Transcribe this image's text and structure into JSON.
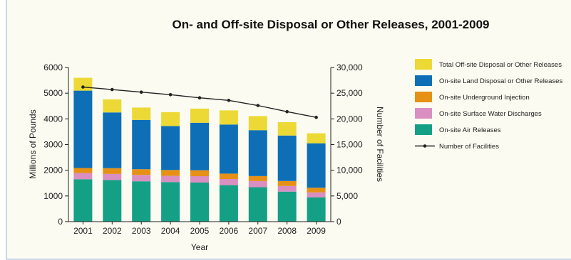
{
  "chart_data": {
    "type": "bar",
    "stacked": true,
    "title": "On- and Off-site Disposal or Other Releases, 2001-2009",
    "xlabel": "Year",
    "ylabel": "Millions of Pounds",
    "y2label": "Number of Facilities",
    "categories": [
      "2001",
      "2002",
      "2003",
      "2004",
      "2005",
      "2006",
      "2007",
      "2008",
      "2009"
    ],
    "ylim": [
      0,
      6000
    ],
    "yticks": [
      "0",
      "1000",
      "2000",
      "3000",
      "4000",
      "5000",
      "6000"
    ],
    "y2lim": [
      0,
      30000
    ],
    "y2ticks": [
      "0",
      "5,000",
      "10,000",
      "15,000",
      "20,000",
      "25,000",
      "30,000"
    ],
    "series": [
      {
        "name": "On-site Air Releases",
        "color": "#14a085",
        "values": [
          1650,
          1620,
          1570,
          1540,
          1520,
          1420,
          1340,
          1170,
          940
        ]
      },
      {
        "name": "On-site Surface Water Discharges",
        "color": "#d98fc1",
        "values": [
          240,
          240,
          250,
          240,
          250,
          240,
          240,
          220,
          200
        ]
      },
      {
        "name": "On-site Underground Injection",
        "color": "#e69116",
        "values": [
          200,
          220,
          220,
          230,
          230,
          210,
          190,
          190,
          180
        ]
      },
      {
        "name": "On-site Land Disposal or Other Releases",
        "color": "#0e6fb7",
        "values": [
          3010,
          2170,
          1920,
          1710,
          1850,
          1910,
          1790,
          1770,
          1730
        ]
      },
      {
        "name": "Total Off-site Disposal or Other Releases",
        "color": "#ecd935",
        "values": [
          500,
          510,
          480,
          540,
          550,
          550,
          550,
          520,
          390
        ]
      }
    ],
    "line_series": {
      "name": "Number of Facilities",
      "axis": "right",
      "color": "#222222",
      "values": [
        26200,
        25700,
        25200,
        24700,
        24100,
        23600,
        22600,
        21400,
        20300
      ]
    },
    "legend_order": [
      "Total Off-site Disposal or Other Releases",
      "On-site Land Disposal or Other Releases",
      "On-site Underground Injection",
      "On-site Surface Water Discharges",
      "On-site Air Releases",
      "Number of Facilities"
    ],
    "legend_position": "right",
    "grid": false
  }
}
